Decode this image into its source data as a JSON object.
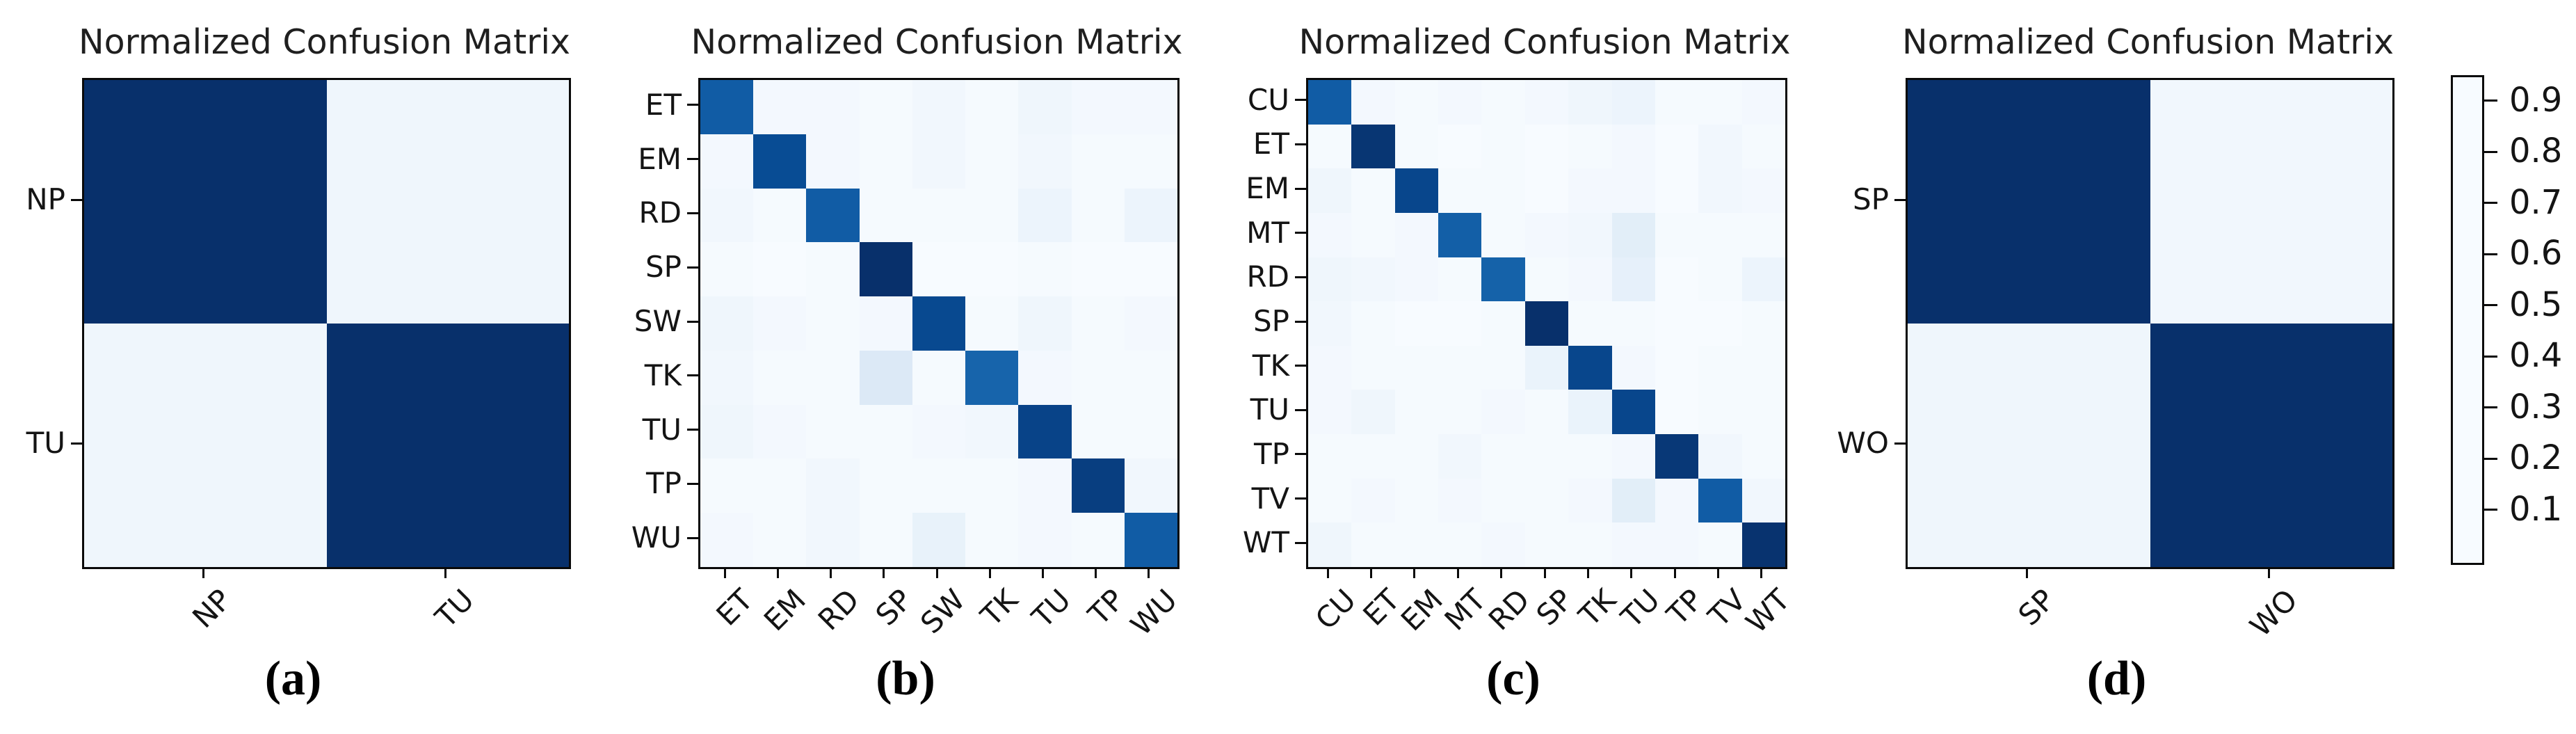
{
  "figure": {
    "background": "#ffffff",
    "text_color": "#141414",
    "colormap_name": "Blues",
    "colormap_stops": [
      {
        "t": 0.0,
        "rgb": [
          247,
          251,
          255
        ]
      },
      {
        "t": 0.125,
        "rgb": [
          222,
          235,
          247
        ]
      },
      {
        "t": 0.25,
        "rgb": [
          198,
          219,
          239
        ]
      },
      {
        "t": 0.375,
        "rgb": [
          158,
          202,
          225
        ]
      },
      {
        "t": 0.5,
        "rgb": [
          107,
          174,
          214
        ]
      },
      {
        "t": 0.625,
        "rgb": [
          66,
          146,
          198
        ]
      },
      {
        "t": 0.75,
        "rgb": [
          33,
          113,
          181
        ]
      },
      {
        "t": 0.875,
        "rgb": [
          8,
          81,
          156
        ]
      },
      {
        "t": 1.0,
        "rgb": [
          8,
          48,
          107
        ]
      }
    ],
    "colorbar": {
      "tick_labels": [
        "0.9",
        "0.8",
        "0.7",
        "0.6",
        "0.5",
        "0.4",
        "0.3",
        "0.2",
        "0.1"
      ],
      "tick_values": [
        0.9,
        0.8,
        0.7,
        0.6,
        0.5,
        0.4,
        0.3,
        0.2,
        0.1
      ],
      "vmin": 0.0,
      "vmax": 0.95
    }
  },
  "chart_data": [
    {
      "type": "heatmap",
      "title": "Normalized Confusion Matrix",
      "caption": "(a)",
      "x_labels": [
        "NP",
        "TU"
      ],
      "y_labels": [
        "NP",
        "TU"
      ],
      "x_tick_rotation": 45,
      "vmin": 0.0,
      "vmax": 0.95,
      "colormap": "Blues",
      "values": [
        [
          0.96,
          0.04
        ],
        [
          0.04,
          0.96
        ]
      ]
    },
    {
      "type": "heatmap",
      "title": "Normalized Confusion Matrix",
      "caption": "(b)",
      "x_labels": [
        "ET",
        "EM",
        "RD",
        "SP",
        "SW",
        "TK",
        "TU",
        "TP",
        "WU"
      ],
      "y_labels": [
        "ET",
        "EM",
        "RD",
        "SP",
        "SW",
        "TK",
        "TU",
        "TP",
        "WU"
      ],
      "x_tick_rotation": 45,
      "vmin": 0.0,
      "vmax": 0.95,
      "colormap": "Blues",
      "values": [
        [
          0.79,
          0.02,
          0.02,
          0.01,
          0.03,
          0.01,
          0.04,
          0.02,
          0.02
        ],
        [
          0.02,
          0.85,
          0.02,
          0.01,
          0.03,
          0.01,
          0.03,
          0.01,
          0.01
        ],
        [
          0.03,
          0.01,
          0.79,
          0.01,
          0.01,
          0.01,
          0.05,
          0.01,
          0.05
        ],
        [
          0.01,
          0.0,
          0.01,
          0.97,
          0.0,
          0.0,
          0.01,
          0.0,
          0.0
        ],
        [
          0.04,
          0.02,
          0.01,
          0.02,
          0.86,
          0.01,
          0.04,
          0.01,
          0.02
        ],
        [
          0.03,
          0.01,
          0.01,
          0.13,
          0.01,
          0.76,
          0.02,
          0.01,
          0.01
        ],
        [
          0.04,
          0.02,
          0.01,
          0.01,
          0.02,
          0.03,
          0.88,
          0.01,
          0.01
        ],
        [
          0.01,
          0.01,
          0.03,
          0.01,
          0.01,
          0.01,
          0.02,
          0.9,
          0.03
        ],
        [
          0.02,
          0.01,
          0.03,
          0.01,
          0.07,
          0.01,
          0.02,
          0.01,
          0.79
        ]
      ]
    },
    {
      "type": "heatmap",
      "title": "Normalized Confusion Matrix",
      "caption": "(c)",
      "x_labels": [
        "CU",
        "ET",
        "EM",
        "MT",
        "RD",
        "SP",
        "TK",
        "TU",
        "TP",
        "TV",
        "WT"
      ],
      "y_labels": [
        "CU",
        "ET",
        "EM",
        "MT",
        "RD",
        "SP",
        "TK",
        "TU",
        "TP",
        "TV",
        "WT"
      ],
      "x_tick_rotation": 45,
      "vmin": 0.0,
      "vmax": 0.95,
      "colormap": "Blues",
      "values": [
        [
          0.79,
          0.02,
          0.01,
          0.02,
          0.01,
          0.02,
          0.04,
          0.05,
          0.01,
          0.01,
          0.02
        ],
        [
          0.01,
          0.93,
          0.01,
          0.0,
          0.01,
          0.0,
          0.01,
          0.02,
          0.0,
          0.03,
          0.01
        ],
        [
          0.04,
          0.01,
          0.87,
          0.01,
          0.01,
          0.0,
          0.02,
          0.02,
          0.0,
          0.03,
          0.02
        ],
        [
          0.02,
          0.01,
          0.02,
          0.78,
          0.01,
          0.02,
          0.03,
          0.1,
          0.01,
          0.01,
          0.01
        ],
        [
          0.04,
          0.03,
          0.02,
          0.01,
          0.77,
          0.01,
          0.02,
          0.08,
          0.0,
          0.01,
          0.05
        ],
        [
          0.03,
          0.01,
          0.0,
          0.0,
          0.01,
          0.95,
          0.01,
          0.01,
          0.0,
          0.0,
          0.01
        ],
        [
          0.02,
          0.01,
          0.01,
          0.01,
          0.01,
          0.06,
          0.87,
          0.02,
          0.0,
          0.01,
          0.01
        ],
        [
          0.02,
          0.04,
          0.01,
          0.01,
          0.02,
          0.01,
          0.06,
          0.87,
          0.0,
          0.01,
          0.01
        ],
        [
          0.01,
          0.01,
          0.01,
          0.03,
          0.01,
          0.01,
          0.01,
          0.02,
          0.92,
          0.03,
          0.01
        ],
        [
          0.01,
          0.02,
          0.01,
          0.02,
          0.01,
          0.01,
          0.02,
          0.1,
          0.02,
          0.79,
          0.03
        ],
        [
          0.04,
          0.01,
          0.01,
          0.01,
          0.02,
          0.01,
          0.01,
          0.02,
          0.02,
          0.01,
          0.94
        ]
      ]
    },
    {
      "type": "heatmap",
      "title": "Normalized Confusion Matrix",
      "caption": "(d)",
      "x_labels": [
        "SP",
        "WO"
      ],
      "y_labels": [
        "SP",
        "WO"
      ],
      "x_tick_rotation": 45,
      "vmin": 0.0,
      "vmax": 0.95,
      "colormap": "Blues",
      "values": [
        [
          0.96,
          0.03
        ],
        [
          0.04,
          0.96
        ]
      ]
    }
  ]
}
